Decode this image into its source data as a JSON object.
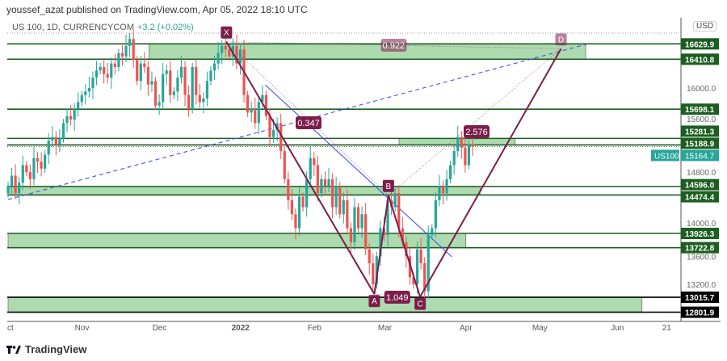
{
  "header": {
    "publisher": "youssef_azat published on TradingView.com, Apr 05, 2022 18:10 UTC"
  },
  "legend": {
    "symbol": "US 100, 1D, CURRENCYCOM",
    "change": "+3.2 (+0.02%)"
  },
  "currency": "USD",
  "footer": {
    "brand": "TradingView",
    "logo_icon": "tradingview-logo-icon"
  },
  "colors": {
    "up": "#26a69a",
    "down": "#ef5350",
    "level": "#1b5e20",
    "zone": "#a5d6a7",
    "pattern": "#7b1e4a",
    "trend": "#3f51f5",
    "last_price": "#26a69a"
  },
  "chart_data": {
    "type": "candlestick",
    "symbol": "US100",
    "start_date": "2021-10-01",
    "end_date": "2022-04-05",
    "closes": [
      14600,
      14750,
      14500,
      14650,
      14900,
      14800,
      14700,
      15000,
      14950,
      14850,
      15050,
      15250,
      15300,
      15200,
      15280,
      15500,
      15600,
      15550,
      15700,
      15800,
      15900,
      15950,
      16000,
      16150,
      16250,
      16300,
      16200,
      16150,
      16350,
      16300,
      16500,
      16450,
      16600,
      16700,
      16400,
      16100,
      16350,
      16300,
      16050,
      16100,
      15750,
      15800,
      16200,
      16250,
      15900,
      15950,
      16150,
      16300,
      15900,
      15700,
      16300,
      15900,
      15800,
      15850,
      16100,
      16250,
      16350,
      16500,
      16600,
      16550,
      16450,
      16600,
      16350,
      16550,
      15900,
      15650,
      15700,
      15500,
      15800,
      15900,
      15600,
      15300,
      15400,
      15500,
      15100,
      14700,
      14400,
      14200,
      14000,
      14450,
      14300,
      14700,
      15000,
      14900,
      14500,
      14700,
      14600,
      14700,
      14300,
      14600,
      14200,
      14400,
      14000,
      13800,
      14300,
      14000,
      14200,
      13700,
      13500,
      13200,
      13600,
      14000,
      13900,
      14400,
      14300,
      14500,
      14000,
      13800,
      13600,
      13300,
      13200,
      13700,
      13500,
      13100,
      13900,
      14000,
      14400,
      14600,
      14500,
      14700,
      14900,
      15100,
      15300,
      15150,
      14900,
      15200,
      15164.7
    ],
    "ylim": [
      12700,
      16900
    ],
    "y_ticks": [
      16000,
      15600,
      14800,
      14000,
      13600,
      13200
    ],
    "x_ticks": [
      {
        "label": "ct",
        "date": "2021-10-01"
      },
      {
        "label": "Nov",
        "date": "2021-11-01"
      },
      {
        "label": "Dec",
        "date": "2021-12-01"
      },
      {
        "label": "2022",
        "date": "2022-01-03"
      },
      {
        "label": "Feb",
        "date": "2022-02-01"
      },
      {
        "label": "Mar",
        "date": "2022-03-01"
      },
      {
        "label": "Apr",
        "date": "2022-04-01"
      },
      {
        "label": "May",
        "date": "2022-05-02"
      },
      {
        "label": "Jun",
        "date": "2022-06-01"
      },
      {
        "label": "21",
        "date": "2022-06-21"
      }
    ],
    "levels": [
      {
        "price": 16629.9,
        "label": "16629.9",
        "style": "green"
      },
      {
        "price": 16410.8,
        "label": "16410.8",
        "style": "green"
      },
      {
        "price": 15698.1,
        "label": "15698.1",
        "style": "green"
      },
      {
        "price": 15281.3,
        "label": "15281.3",
        "style": "green"
      },
      {
        "price": 15188.9,
        "label": "15188.9",
        "style": "green"
      },
      {
        "price": 14596.0,
        "label": "14596.0",
        "style": "green"
      },
      {
        "price": 14474.4,
        "label": "14474.4",
        "style": "green"
      },
      {
        "price": 13926.3,
        "label": "13926.3",
        "style": "green"
      },
      {
        "price": 13722.8,
        "label": "13722.8",
        "style": "green"
      },
      {
        "price": 13015.7,
        "label": "13015.7",
        "style": "black"
      },
      {
        "price": 12801.9,
        "label": "12801.9",
        "style": "black"
      }
    ],
    "last_price": {
      "label": "US100",
      "value": "15164.7",
      "price": 15164.7
    },
    "zones": [
      {
        "from": "2021-11-26",
        "to": "2022-05-19",
        "low": 16410.8,
        "high": 16629.9
      },
      {
        "from": "2022-03-07",
        "to": "2022-04-21",
        "low": 15188.9,
        "high": 15281.3
      },
      {
        "from": "2021-10-01",
        "to": "2022-04-07",
        "low": 14474.4,
        "high": 14596.0
      },
      {
        "from": "2021-10-01",
        "to": "2022-04-01",
        "low": 13722.8,
        "high": 13926.3
      },
      {
        "from": "2021-10-01",
        "to": "2022-06-10",
        "low": 12801.9,
        "high": 13015.7
      }
    ],
    "trendlines": [
      {
        "style": "dashed",
        "from": {
          "date": "2021-10-01",
          "price": 14410
        },
        "to": {
          "date": "2022-05-19",
          "price": 16622
        }
      },
      {
        "style": "solid",
        "from": {
          "date": "2022-01-12",
          "price": 16046
        },
        "to": {
          "date": "2022-03-28",
          "price": 13592
        }
      }
    ],
    "pattern": {
      "points": [
        {
          "label": "X",
          "date": "2021-12-28",
          "price": 16660
        },
        {
          "label": "A",
          "date": "2022-02-24",
          "price": 13060
        },
        {
          "label": "B",
          "date": "2022-03-02",
          "price": 14470
        },
        {
          "label": "C",
          "date": "2022-03-15",
          "price": 13020
        },
        {
          "label": "D",
          "date": "2022-05-10",
          "price": 16560
        }
      ],
      "ratios": [
        {
          "label": "0.347",
          "from": "X",
          "to": "B"
        },
        {
          "label": "1.049",
          "from": "A",
          "to": "C"
        },
        {
          "label": "2.576",
          "from": "B",
          "to": "D"
        },
        {
          "label": "0.922",
          "from": "X",
          "to": "D"
        }
      ]
    }
  }
}
